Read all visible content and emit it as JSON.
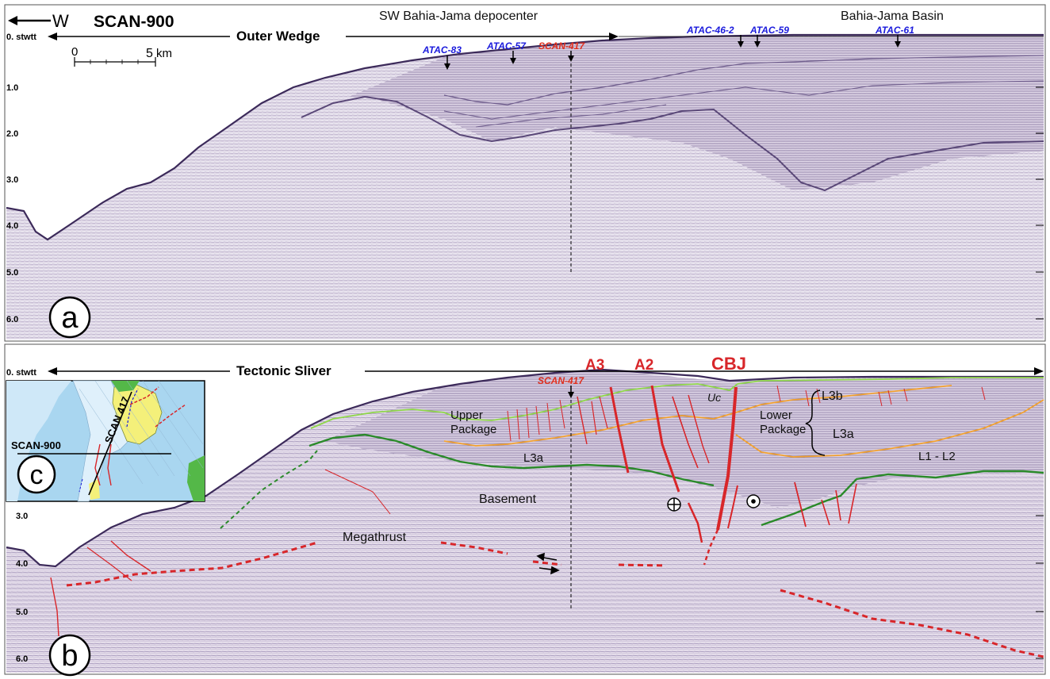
{
  "panel_a": {
    "header": {
      "west_arrow_label": "W",
      "line_name": "SCAN-900",
      "area_depocenter": "SW Bahia-Jama depocenter",
      "area_basin": "Bahia-Jama Basin",
      "span_label": "Outer Wedge",
      "stwtt_label": "0. stwtt"
    },
    "scale_bar": {
      "start": "0",
      "end": "5",
      "unit": "km"
    },
    "wells": [
      {
        "name": "ATAC-83",
        "color": "#1a1adc"
      },
      {
        "name": "ATAC-57",
        "color": "#1a1adc"
      },
      {
        "name": "SCAN-417",
        "color": "#e0301e"
      },
      {
        "name": "ATAC-46-2",
        "color": "#1a1adc"
      },
      {
        "name": "ATAC-59",
        "color": "#1a1adc"
      },
      {
        "name": "ATAC-61",
        "color": "#1a1adc"
      }
    ],
    "y_ticks": [
      "1.0",
      "2.0",
      "3.0",
      "4.0",
      "5.0",
      "6.0"
    ],
    "panel_letter": "a"
  },
  "panel_b": {
    "span_label": "Tectonic Sliver",
    "stwtt_label": "0. stwtt",
    "fault_labels": {
      "a3": "A3",
      "a2": "A2",
      "cbj": "CBJ"
    },
    "crossline_label": "SCAN-417",
    "units": {
      "uc": "Uc",
      "l3b": "L3b",
      "upper_package_1": "Upper",
      "upper_package_2": "Package",
      "lower_package_1": "Lower",
      "lower_package_2": "Package",
      "l3a_right": "L3a",
      "l3a_left": "L3a",
      "l1_l2": "L1 - L2",
      "basement": "Basement",
      "megathrust": "Megathrust"
    },
    "y_ticks": [
      "3.0",
      "4.0",
      "5.0",
      "6.0"
    ],
    "panel_letter": "b"
  },
  "inset_map": {
    "line_scan900": "SCAN-900",
    "line_scan417": "SCAN 417",
    "panel_letter": "c"
  },
  "colors": {
    "seismic_fill": "#e6e0ec",
    "seafloor": "#3c2a5a",
    "reflector": "#5a4878",
    "fault_red": "#d8262a",
    "horizon_light_green": "#8fd64a",
    "horizon_dark_green": "#2a8a2a",
    "horizon_orange": "#f0a030",
    "map_water": "#a9d6f0",
    "map_land_yellow": "#f4f07a",
    "map_land_green": "#54b848"
  }
}
